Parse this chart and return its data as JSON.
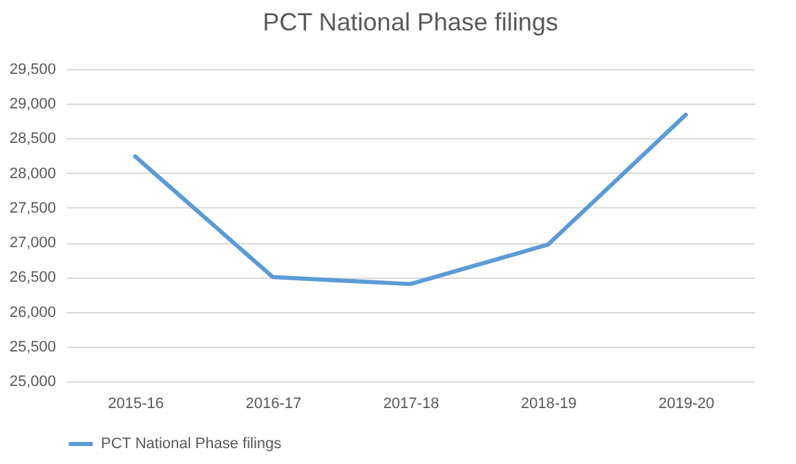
{
  "chart_data": {
    "type": "line",
    "title": "PCT National Phase filings",
    "categories": [
      "2015-16",
      "2016-17",
      "2017-18",
      "2018-19",
      "2019-20"
    ],
    "series": [
      {
        "name": "PCT National Phase filings",
        "color": "#5b9bd5",
        "values": [
          28240,
          26500,
          26400,
          26970,
          28840
        ]
      }
    ],
    "ylim": [
      25000,
      29500
    ],
    "yticks": [
      {
        "value": 25000,
        "label": "25,000"
      },
      {
        "value": 25500,
        "label": "25,500"
      },
      {
        "value": 26000,
        "label": "26,000"
      },
      {
        "value": 26500,
        "label": "26,500"
      },
      {
        "value": 27000,
        "label": "27,000"
      },
      {
        "value": 27500,
        "label": "27,500"
      },
      {
        "value": 28000,
        "label": "28,000"
      },
      {
        "value": 28500,
        "label": "28,500"
      },
      {
        "value": 29000,
        "label": "29,000"
      },
      {
        "value": 29500,
        "label": "29,500"
      }
    ],
    "grid": "y",
    "legend": "bottom",
    "marker": "none"
  }
}
